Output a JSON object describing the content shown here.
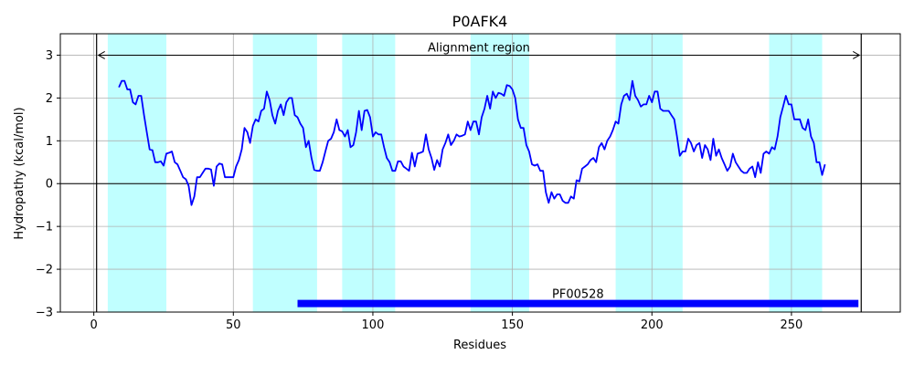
{
  "chart_data": {
    "type": "line",
    "title": "P0AFK4",
    "xlabel": "Residues",
    "ylabel": "Hydropathy (kcal/mol)",
    "xlim": [
      -12,
      289
    ],
    "ylim": [
      -3,
      3.5
    ],
    "xticks": [
      0,
      50,
      100,
      150,
      200,
      250
    ],
    "yticks": [
      -3,
      -2,
      -1,
      0,
      1,
      2,
      3
    ],
    "ytick_labels": [
      "−3",
      "−2",
      "−1",
      "0",
      "1",
      "2",
      "3"
    ],
    "grid": true,
    "line_color": "#0000ff",
    "highlight_color": "#c0ffff",
    "domain_color": "#0000ff",
    "hydropathy": {
      "x_start": 9,
      "values": [
        2.25,
        2.4,
        2.4,
        2.2,
        2.2,
        1.9,
        1.85,
        2.05,
        2.05,
        1.6,
        1.2,
        0.8,
        0.78,
        0.5,
        0.5,
        0.52,
        0.42,
        0.7,
        0.72,
        0.75,
        0.5,
        0.45,
        0.3,
        0.15,
        0.1,
        -0.05,
        -0.5,
        -0.3,
        0.15,
        0.15,
        0.25,
        0.35,
        0.35,
        0.33,
        -0.05,
        0.4,
        0.47,
        0.45,
        0.15,
        0.15,
        0.15,
        0.15,
        0.4,
        0.55,
        0.8,
        1.3,
        1.2,
        0.95,
        1.35,
        1.5,
        1.45,
        1.7,
        1.75,
        2.15,
        1.95,
        1.6,
        1.4,
        1.7,
        1.85,
        1.6,
        1.9,
        2.0,
        2.0,
        1.6,
        1.55,
        1.4,
        1.3,
        0.85,
        1.0,
        0.6,
        0.32,
        0.3,
        0.3,
        0.5,
        0.75,
        1.0,
        1.05,
        1.2,
        1.5,
        1.25,
        1.22,
        1.1,
        1.25,
        0.85,
        0.9,
        1.2,
        1.7,
        1.25,
        1.7,
        1.72,
        1.55,
        1.1,
        1.2,
        1.15,
        1.15,
        0.85,
        0.6,
        0.5,
        0.3,
        0.3,
        0.52,
        0.52,
        0.4,
        0.35,
        0.3,
        0.72,
        0.4,
        0.7,
        0.72,
        0.75,
        1.15,
        0.8,
        0.6,
        0.32,
        0.55,
        0.4,
        0.8,
        0.95,
        1.15,
        0.9,
        1.0,
        1.15,
        1.1,
        1.12,
        1.15,
        1.45,
        1.25,
        1.45,
        1.45,
        1.15,
        1.55,
        1.75,
        2.05,
        1.75,
        2.15,
        2.0,
        2.12,
        2.1,
        2.05,
        2.3,
        2.28,
        2.2,
        2.0,
        1.5,
        1.3,
        1.3,
        0.9,
        0.75,
        0.45,
        0.42,
        0.45,
        0.3,
        0.3,
        -0.2,
        -0.45,
        -0.2,
        -0.35,
        -0.25,
        -0.25,
        -0.4,
        -0.45,
        -0.45,
        -0.3,
        -0.35,
        0.08,
        0.05,
        0.35,
        0.4,
        0.45,
        0.55,
        0.6,
        0.5,
        0.85,
        0.95,
        0.8,
        1.0,
        1.1,
        1.25,
        1.45,
        1.4,
        1.85,
        2.05,
        2.1,
        1.95,
        2.4,
        2.05,
        1.95,
        1.8,
        1.85,
        1.85,
        2.05,
        1.9,
        2.15,
        2.15,
        1.75,
        1.7,
        1.7,
        1.7,
        1.6,
        1.5,
        1.1,
        0.65,
        0.75,
        0.75,
        1.05,
        0.95,
        0.75,
        0.9,
        0.95,
        0.6,
        0.9,
        0.8,
        0.55,
        1.05,
        0.65,
        0.8,
        0.6,
        0.45,
        0.3,
        0.4,
        0.7,
        0.5,
        0.4,
        0.3,
        0.25,
        0.25,
        0.35,
        0.4,
        0.15,
        0.5,
        0.25,
        0.7,
        0.75,
        0.7,
        0.85,
        0.8,
        1.1,
        1.55,
        1.8,
        2.05,
        1.85,
        1.85,
        1.5,
        1.5,
        1.5,
        1.3,
        1.25,
        1.5,
        1.1,
        0.95,
        0.5,
        0.5,
        0.2,
        0.45
      ]
    },
    "highlight_regions": [
      [
        5,
        26
      ],
      [
        57,
        80
      ],
      [
        89,
        108
      ],
      [
        135,
        156
      ],
      [
        187,
        211
      ],
      [
        242,
        261
      ]
    ],
    "alignment_region": {
      "start": 1,
      "end": 275,
      "label": "Alignment region",
      "y": 3.0
    },
    "domain": {
      "start": 73,
      "end": 274,
      "label": "PF00528",
      "y": -2.8
    }
  }
}
